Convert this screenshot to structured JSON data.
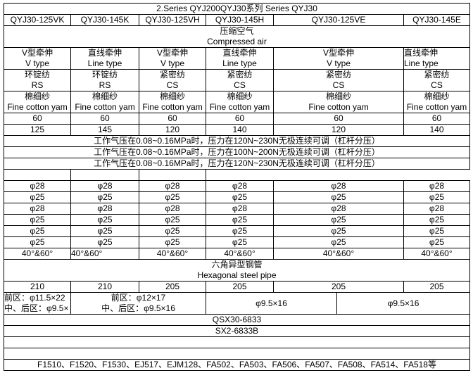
{
  "title": "2.Series QYJ200QYJ30系列 Series QYJ30",
  "models": [
    "QYJ30-125VK",
    "QYJ30-145K",
    "QYJ30-125VH",
    "QYJ30-145H",
    "QYJ30-125VE",
    "QYJ30-145E"
  ],
  "pressure_source": {
    "cn": "压缩空气",
    "en": "Compressed air"
  },
  "drafting": [
    {
      "cn": "V型牵伸",
      "en": "V type"
    },
    {
      "cn": "直线牵伸",
      "en": "Line type"
    },
    {
      "cn": "V型牵伸",
      "en": "V type"
    },
    {
      "cn": "直线牵伸",
      "en": "Line type"
    },
    {
      "cn": "V型牵伸",
      "en": "V type"
    },
    {
      "cn": "直线牵伸",
      "en": "Line type"
    }
  ],
  "spinning": [
    {
      "cn": "环锭纺",
      "en": "RS"
    },
    {
      "cn": "环锭纺",
      "en": "RS"
    },
    {
      "cn": "紧密纺",
      "en": "CS"
    },
    {
      "cn": "紧密纺",
      "en": "CS"
    },
    {
      "cn": "紧密纺",
      "en": "CS"
    },
    {
      "cn": "紧密纺",
      "en": "CS"
    }
  ],
  "yarn": [
    {
      "cn": "棉细纱",
      "en": "Fine cotton yam"
    },
    {
      "cn": "棉细纱",
      "en": "Fine cotton yam"
    },
    {
      "cn": "棉细纱",
      "en": "Fine cotton yam"
    },
    {
      "cn": "棉细纱",
      "en": "Fine cotton yam"
    },
    {
      "cn": "棉细纱",
      "en": "Fine cotton yam"
    },
    {
      "cn": "棉细纱",
      "en": "Fine cotton yam"
    }
  ],
  "row_60": [
    "60",
    "60",
    "60",
    "60",
    "60",
    "60"
  ],
  "row_len": [
    "125",
    "145",
    "120",
    "140",
    "120",
    "140"
  ],
  "pressure_notes": [
    "工作气压在0.08~0.16MPa时，压力在120N~230N无极连续可调（杠杆分压）",
    "工作气压在0.08~0.16MPa时，压力在100N~200N无极连续可调（杠杆分压）",
    "工作气压在0.08~0.16MPa时，压力在120N~230N无极连续可调（杠杆分压）"
  ],
  "diameters": [
    [
      "φ28",
      "φ28",
      "φ28",
      "φ28",
      "φ28",
      "φ28"
    ],
    [
      "φ25",
      "φ25",
      "φ25",
      "φ25",
      "φ25",
      "φ25"
    ],
    [
      "φ28",
      "φ28",
      "φ28",
      "φ28",
      "φ28",
      "φ28"
    ],
    [
      "φ25",
      "φ25",
      "φ25",
      "φ25",
      "φ25",
      "φ25"
    ],
    [
      "φ25",
      "φ25",
      "φ25",
      "φ25",
      "φ25",
      "φ25"
    ],
    [
      "φ25",
      "φ25",
      "φ25",
      "φ25",
      "φ25",
      "φ25"
    ]
  ],
  "angles": [
    "40°&60°",
    "40°&60°",
    "40°&60°",
    "40°&60°",
    "40°&60°",
    "40°&60°"
  ],
  "pipe": {
    "cn": "六角异型钢管",
    "en": "Hexagonal steel pipe"
  },
  "row_pipe": [
    "210",
    "210",
    "205",
    "205",
    "205",
    "205"
  ],
  "cradle": {
    "c1_front": "前区：φ11.5×22",
    "c1_rear": "中、后区：φ9.5×",
    "c2_front": "前区：φ12×17",
    "c2_rear": "中、后区：φ9.5×16",
    "c3": "φ9.5×16",
    "c4": "φ9.5×16"
  },
  "model_a": "QSX30-6833",
  "model_b": "SX2-6833B",
  "applicable": "F1510、F1520、F1530、EJ517、EJM128、FA502、FA503、FA506、FA507、FA508、FA514、FA518等"
}
